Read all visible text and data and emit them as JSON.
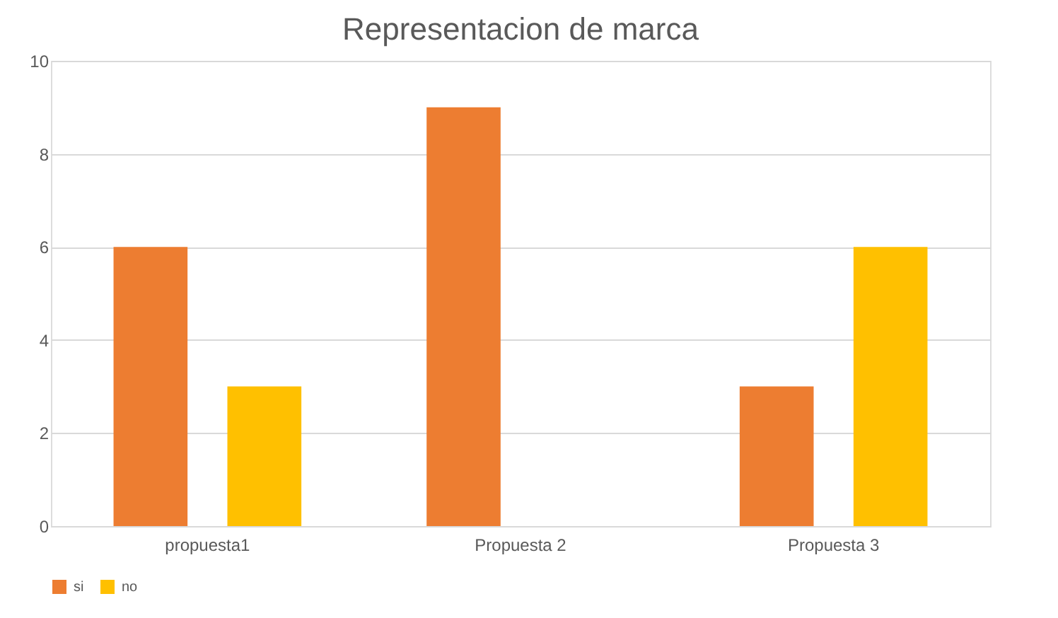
{
  "chart_data": {
    "type": "bar",
    "title": "Representacion de marca",
    "categories": [
      "propuesta1",
      "Propuesta 2",
      "Propuesta 3"
    ],
    "series": [
      {
        "name": "si",
        "color": "#ed7d31",
        "values": [
          6,
          9,
          3
        ]
      },
      {
        "name": "no",
        "color": "#ffc000",
        "values": [
          3,
          0,
          6
        ]
      }
    ],
    "ylim": [
      0,
      10
    ],
    "yticks": [
      0,
      2,
      4,
      6,
      8,
      10
    ],
    "grid": "y",
    "legend": "bottom"
  }
}
